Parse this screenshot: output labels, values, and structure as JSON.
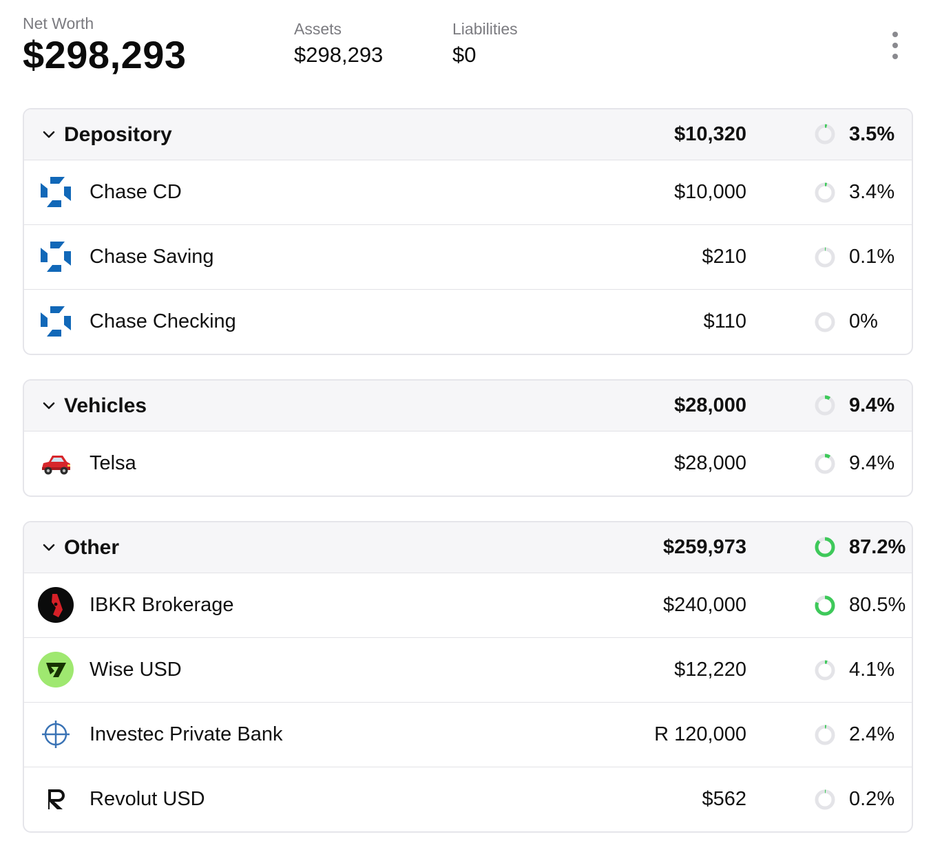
{
  "summary": {
    "net_worth_label": "Net Worth",
    "net_worth": "$298,293",
    "assets_label": "Assets",
    "assets": "$298,293",
    "liabilities_label": "Liabilities",
    "liabilities": "$0"
  },
  "colors": {
    "ring_fill": "#3ec95a",
    "ring_track": "#e4e4e8",
    "chase_blue": "#1168b8",
    "wise_green": "#9fe870"
  },
  "groups": [
    {
      "name": "Depository",
      "total": "$10,320",
      "percent": "3.5%",
      "share": 0.035,
      "accounts": [
        {
          "name": "Chase CD",
          "amount": "$10,000",
          "percent": "3.4%",
          "share": 0.034,
          "icon": "chase-logo-icon"
        },
        {
          "name": "Chase Saving",
          "amount": "$210",
          "percent": "0.1%",
          "share": 0.001,
          "icon": "chase-logo-icon"
        },
        {
          "name": "Chase Checking",
          "amount": "$110",
          "percent": "0%",
          "share": 0.0,
          "icon": "chase-logo-icon"
        }
      ]
    },
    {
      "name": "Vehicles",
      "total": "$28,000",
      "percent": "9.4%",
      "share": 0.094,
      "accounts": [
        {
          "name": "Telsa",
          "amount": "$28,000",
          "percent": "9.4%",
          "share": 0.094,
          "icon": "car-icon"
        }
      ]
    },
    {
      "name": "Other",
      "total": "$259,973",
      "percent": "87.2%",
      "share": 0.872,
      "accounts": [
        {
          "name": "IBKR Brokerage",
          "amount": "$240,000",
          "percent": "80.5%",
          "share": 0.805,
          "icon": "ibkr-logo-icon"
        },
        {
          "name": "Wise USD",
          "amount": "$12,220",
          "percent": "4.1%",
          "share": 0.041,
          "icon": "wise-logo-icon"
        },
        {
          "name": "Investec Private Bank",
          "amount": "R 120,000",
          "percent": "2.4%",
          "share": 0.024,
          "icon": "investec-logo-icon"
        },
        {
          "name": "Revolut USD",
          "amount": "$562",
          "percent": "0.2%",
          "share": 0.002,
          "icon": "revolut-logo-icon"
        }
      ]
    }
  ]
}
